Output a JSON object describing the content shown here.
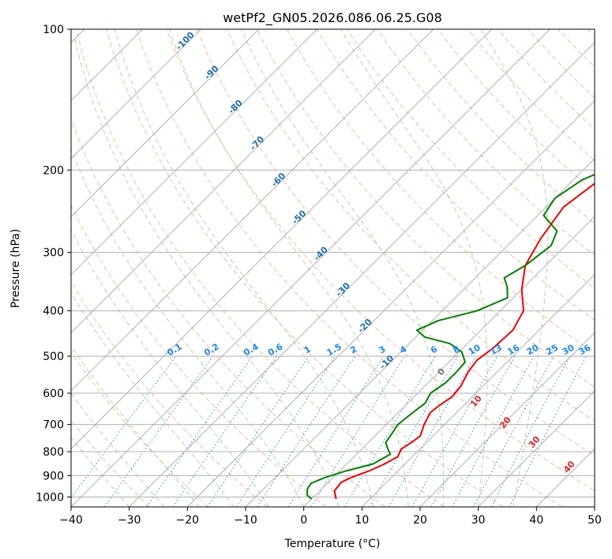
{
  "chart_data": {
    "type": "line",
    "subtype": "skew-t log-p",
    "title": "wetPf2_GN05.2026.086.06.25.G08",
    "xlabel": "Temperature (°C)",
    "ylabel": "Pressure (hPa)",
    "xlim": [
      -40,
      50
    ],
    "ylim": [
      1050,
      100
    ],
    "xticks": [
      -40,
      -30,
      -20,
      -10,
      0,
      10,
      20,
      30,
      40,
      50
    ],
    "yticks": [
      100,
      200,
      300,
      400,
      500,
      600,
      700,
      800,
      900,
      1000
    ],
    "grid": true,
    "series": [
      {
        "name": "Temperature",
        "color": "#ee0000",
        "points": [
          {
            "p": 1010,
            "t": 4.2
          },
          {
            "p": 970,
            "t": 2.5
          },
          {
            "p": 930,
            "t": 2.2
          },
          {
            "p": 910,
            "t": 3.0
          },
          {
            "p": 880,
            "t": 5.0
          },
          {
            "p": 850,
            "t": 6.5
          },
          {
            "p": 820,
            "t": 7.5
          },
          {
            "p": 790,
            "t": 6.8
          },
          {
            "p": 760,
            "t": 7.5
          },
          {
            "p": 740,
            "t": 7.8
          },
          {
            "p": 700,
            "t": 6.5
          },
          {
            "p": 660,
            "t": 5.5
          },
          {
            "p": 640,
            "t": 5.8
          },
          {
            "p": 610,
            "t": 6.5
          },
          {
            "p": 580,
            "t": 6.2
          },
          {
            "p": 540,
            "t": 5.0
          },
          {
            "p": 510,
            "t": 4.5
          },
          {
            "p": 480,
            "t": 5.2
          },
          {
            "p": 440,
            "t": 5.5
          },
          {
            "p": 400,
            "t": 4.0
          },
          {
            "p": 360,
            "t": 0.0
          },
          {
            "p": 320,
            "t": -3.5
          },
          {
            "p": 280,
            "t": -5.5
          },
          {
            "p": 240,
            "t": -7.0
          },
          {
            "p": 210,
            "t": -5.5
          },
          {
            "p": 195,
            "t": -5.0
          },
          {
            "p": 185,
            "t": 0.0
          },
          {
            "p": 175,
            "t": 6.0
          },
          {
            "p": 165,
            "t": 8.0
          },
          {
            "p": 150,
            "t": 11.5
          },
          {
            "p": 130,
            "t": 14.5
          },
          {
            "p": 115,
            "t": 16.5
          },
          {
            "p": 105,
            "t": 18.0
          },
          {
            "p": 100,
            "t": 18.5
          }
        ]
      },
      {
        "name": "Dewpoint",
        "color": "#008000",
        "points": [
          {
            "p": 1010,
            "t": 0.0
          },
          {
            "p": 990,
            "t": -1.5
          },
          {
            "p": 960,
            "t": -2.5
          },
          {
            "p": 935,
            "t": -2.8
          },
          {
            "p": 910,
            "t": -1.5
          },
          {
            "p": 880,
            "t": 1.0
          },
          {
            "p": 850,
            "t": 4.5
          },
          {
            "p": 810,
            "t": 5.8
          },
          {
            "p": 790,
            "t": 4.5
          },
          {
            "p": 765,
            "t": 3.0
          },
          {
            "p": 730,
            "t": 2.5
          },
          {
            "p": 700,
            "t": 2.0
          },
          {
            "p": 660,
            "t": 2.5
          },
          {
            "p": 630,
            "t": 3.0
          },
          {
            "p": 600,
            "t": 2.2
          },
          {
            "p": 570,
            "t": 3.0
          },
          {
            "p": 540,
            "t": 3.0
          },
          {
            "p": 515,
            "t": 2.8
          },
          {
            "p": 490,
            "t": 0.5
          },
          {
            "p": 470,
            "t": -3.0
          },
          {
            "p": 455,
            "t": -8.5
          },
          {
            "p": 440,
            "t": -11.0
          },
          {
            "p": 420,
            "t": -9.0
          },
          {
            "p": 400,
            "t": -4.0
          },
          {
            "p": 375,
            "t": -1.0
          },
          {
            "p": 355,
            "t": -3.0
          },
          {
            "p": 340,
            "t": -5.0
          },
          {
            "p": 320,
            "t": -3.5
          },
          {
            "p": 290,
            "t": -2.5
          },
          {
            "p": 270,
            "t": -4.0
          },
          {
            "p": 250,
            "t": -9.0
          },
          {
            "p": 230,
            "t": -10.0
          },
          {
            "p": 210,
            "t": -8.5
          },
          {
            "p": 195,
            "t": -5.0
          },
          {
            "p": 185,
            "t": -6.5
          },
          {
            "p": 175,
            "t": -10.0
          },
          {
            "p": 160,
            "t": -10.5
          },
          {
            "p": 145,
            "t": -8.0
          },
          {
            "p": 120,
            "t": 0.0
          },
          {
            "p": 105,
            "t": 6.0
          },
          {
            "p": 100,
            "t": 8.0
          }
        ]
      }
    ],
    "dry_adiabat_labels": [
      "-100",
      "-90",
      "-80",
      "-70",
      "-60",
      "-50",
      "-40",
      "-30",
      "-20",
      "-10"
    ],
    "mixing_ratio_labels": [
      "0.1",
      "0.2",
      "0.4",
      "0.6",
      "1",
      "1.5",
      "2",
      "3",
      "4",
      "6",
      "8",
      "10",
      "13",
      "16",
      "20",
      "25",
      "30",
      "36"
    ],
    "moist_adiabat_labels": [
      "0",
      "10",
      "20",
      "30",
      "40"
    ],
    "colors": {
      "temperature": "#ee0000",
      "dewpoint": "#008000",
      "dry_adiabat": "#f5a080",
      "moist_adiabat": "#90c890",
      "mixing_ratio": "#1e88e5",
      "isotherm_label": "#1f6fb0",
      "moist_label": "#d62728",
      "grid": "#b0b0b0"
    }
  }
}
